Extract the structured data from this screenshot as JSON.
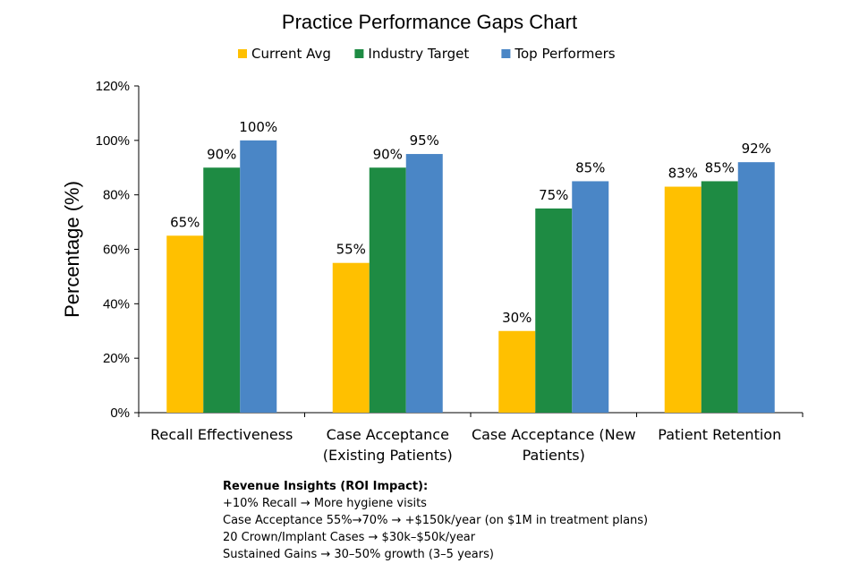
{
  "chart_data": {
    "type": "bar",
    "title": "Practice Performance Gaps Chart",
    "xlabel": "",
    "ylabel": "Percentage (%)",
    "ylim": [
      0,
      120
    ],
    "ytick_step": 20,
    "ytick_format": "%",
    "legend_position": "top-center",
    "grid": false,
    "categories": [
      [
        "Recall Effectiveness"
      ],
      [
        "Case Acceptance",
        "(Existing Patients)"
      ],
      [
        "Case Acceptance (New",
        "Patients)"
      ],
      [
        "Patient Retention"
      ]
    ],
    "series": [
      {
        "name": "Current Avg",
        "color": "#FFC000",
        "values": [
          65,
          55,
          30,
          83
        ]
      },
      {
        "name": "Industry Target",
        "color": "#1E8B43",
        "values": [
          90,
          90,
          75,
          85
        ]
      },
      {
        "name": "Top Performers",
        "color": "#4A86C6",
        "values": [
          100,
          95,
          85,
          92
        ]
      }
    ],
    "data_label_suffix": "%"
  },
  "insights": {
    "heading": "Revenue Insights (ROI Impact):",
    "lines": [
      "+10% Recall → More hygiene visits",
      "Case Acceptance 55%→70% → +$150k/year (on $1M in treatment plans)",
      "20 Crown/Implant Cases → $30k–$50k/year",
      "Sustained Gains → 30–50% growth (3–5 years)"
    ]
  }
}
